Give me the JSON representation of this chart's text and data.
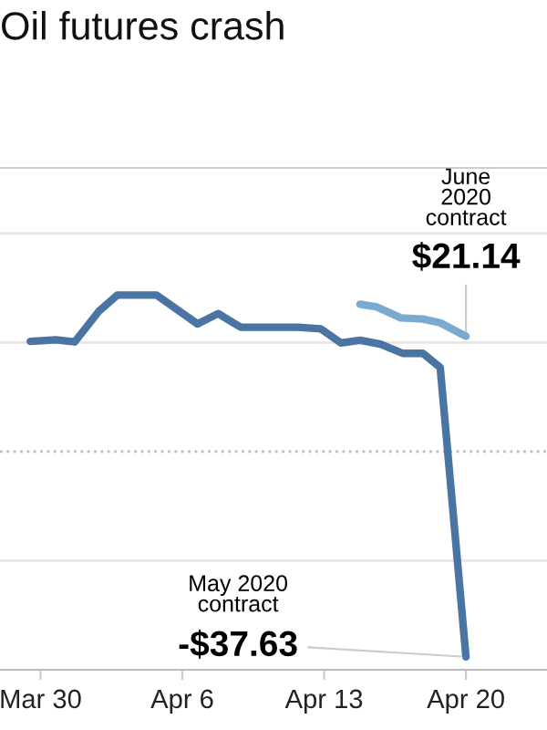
{
  "chart_data": {
    "type": "line",
    "title": "Oil futures crash",
    "xlim": [
      "2020-03-28",
      "2020-04-24"
    ],
    "xticks": [
      {
        "value": "2020-03-30",
        "label": "Mar 30"
      },
      {
        "value": "2020-04-06",
        "label": "Apr 6"
      },
      {
        "value": "2020-04-13",
        "label": "Apr 13"
      },
      {
        "value": "2020-04-20",
        "label": "Apr 20"
      }
    ],
    "ylim": [
      -40,
      52
    ],
    "yticks": [
      {
        "value": -20,
        "label": null
      },
      {
        "value": 20,
        "label": null
      },
      {
        "value": 40,
        "label": null
      }
    ],
    "tick_labels": "x",
    "grid": "y",
    "marker": "none",
    "line_style": "solid",
    "ref_lines": [
      {
        "axis": "y",
        "value": 0,
        "line_style": "dotted",
        "color": "#bbbbbb"
      }
    ],
    "series": [
      {
        "color": "#4a74a2",
        "x": [
          "2020-03-29T12:00",
          "2020-03-30T18:00",
          "2020-03-31T16:30",
          "2020-04-01T21:00",
          "2020-04-02T19:00",
          "2020-04-04T17:30",
          "2020-04-06T18:00",
          "2020-04-07T18:30",
          "2020-04-08T21:00",
          "2020-04-11T17:30",
          "2020-04-12T20:00",
          "2020-04-13T20:00",
          "2020-04-14T18:30",
          "2020-04-15T18:45",
          "2020-04-16T21:00",
          "2020-04-17T21:00",
          "2020-04-18T17:30",
          "2020-04-20"
        ],
        "values": [
          20.2,
          20.5,
          20.1,
          25.7,
          28.7,
          28.7,
          23.4,
          25.3,
          22.8,
          22.8,
          22.5,
          19.9,
          20.4,
          19.7,
          18.0,
          18.0,
          15.4,
          -37.63
        ],
        "value_labels": [
          null,
          null,
          null,
          null,
          null,
          null,
          null,
          null,
          null,
          null,
          null,
          null,
          null,
          null,
          null,
          null,
          null,
          "-$37.63"
        ]
      },
      {
        "color": "#7aaad0",
        "x": [
          "2020-04-14T18:30",
          "2020-04-15T14:30",
          "2020-04-16T19:00",
          "2020-04-17T21:00",
          "2020-04-18T17:30",
          "2020-04-20"
        ],
        "values": [
          27.0,
          26.5,
          24.5,
          24.3,
          23.6,
          21.14
        ],
        "value_labels": [
          null,
          null,
          null,
          null,
          null,
          "$21.14"
        ]
      }
    ],
    "annotations": [
      "May 2020\ncontract",
      "June\n2020\ncontract"
    ]
  }
}
